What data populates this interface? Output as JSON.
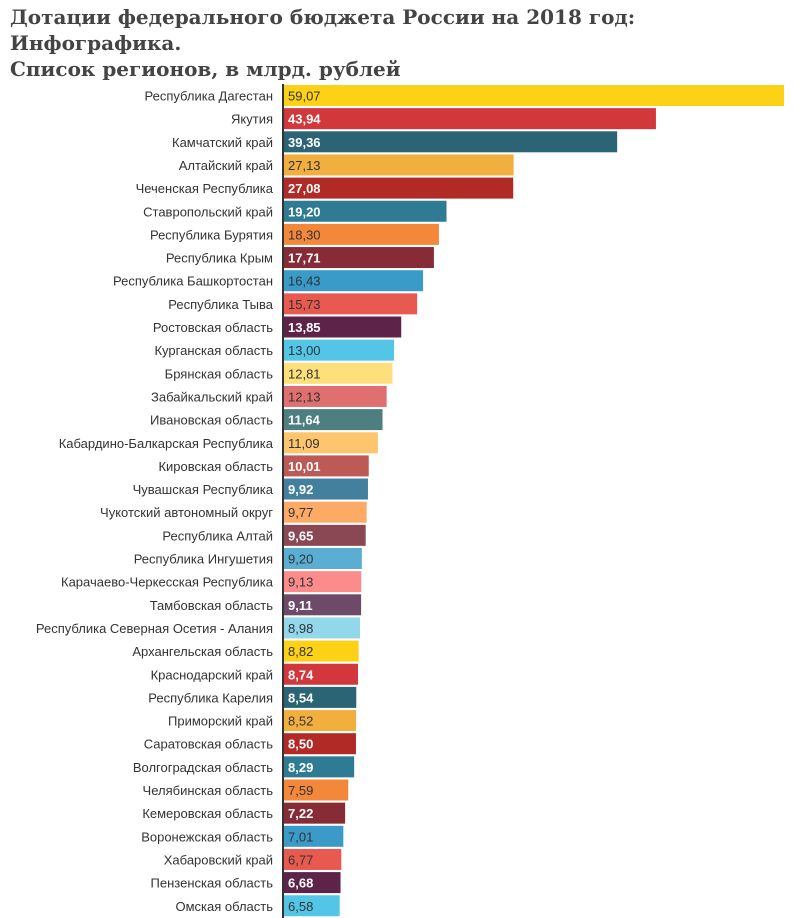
{
  "title_line1": "Дотации федерального бюджета России на 2018 год: Инфографика.",
  "title_line2": "Список регионов, в млрд. рублей",
  "chart_data": {
    "type": "bar",
    "orientation": "horizontal",
    "categories": [
      "Республика Дагестан",
      "Якутия",
      "Камчатский край",
      "Алтайский край",
      "Чеченская Республика",
      "Ставропольский край",
      "Республика Бурятия",
      "Республика Крым",
      "Республика Башкортостан",
      "Республика Тыва",
      "Ростовская область",
      "Курганская область",
      "Брянская область",
      "Забайкальский край",
      "Ивановская область",
      "Кабардино-Балкарская Республика",
      "Кировская область",
      "Чувашская Республика",
      "Чукотский автономный округ",
      "Республика Алтай",
      "Республика Ингушетия",
      "Карачаево-Черкесская Республика",
      "Тамбовская область",
      "Республика Северная Осетия - Алания",
      "Архангельская область",
      "Краснодарский край",
      "Республика Карелия",
      "Приморский край",
      "Саратовская область",
      "Волгоградская область",
      "Челябинская область",
      "Кемеровская область",
      "Воронежская область",
      "Хабаровский край",
      "Пензенская область",
      "Омская область"
    ],
    "values": [
      59.07,
      43.94,
      39.36,
      27.13,
      27.08,
      19.2,
      18.3,
      17.71,
      16.43,
      15.73,
      13.85,
      13.0,
      12.81,
      12.13,
      11.64,
      11.09,
      10.01,
      9.92,
      9.77,
      9.65,
      9.2,
      9.13,
      9.11,
      8.98,
      8.82,
      8.74,
      8.54,
      8.52,
      8.5,
      8.29,
      7.59,
      7.22,
      7.01,
      6.77,
      6.68,
      6.58
    ],
    "value_labels": [
      "59,07",
      "43,94",
      "39,36",
      "27,13",
      "27,08",
      "19,20",
      "18,30",
      "17,71",
      "16,43",
      "15,73",
      "13,85",
      "13,00",
      "12,81",
      "12,13",
      "11,64",
      "11,09",
      "10,01",
      "9,92",
      "9,77",
      "9,65",
      "9,20",
      "9,13",
      "9,11",
      "8,98",
      "8,82",
      "8,74",
      "8,54",
      "8,52",
      "8,50",
      "8,29",
      "7,59",
      "7,22",
      "7,01",
      "6,77",
      "6,68",
      "6,58"
    ],
    "palette": [
      "#fcd116",
      "#d2373b",
      "#2b6575",
      "#f1af3e",
      "#b12a26",
      "#2f7b94",
      "#f3883a",
      "#872b37",
      "#3a9ac8",
      "#e8594f",
      "#5e2349",
      "#53c6e8",
      "#fde07a",
      "#e07070",
      "#4e7f80",
      "#fdc56d",
      "#bd5a55",
      "#43809e",
      "#fdaa66",
      "#8a4855",
      "#5aaed4",
      "#fb8c8b",
      "#6d4b68",
      "#92d7ea"
    ],
    "label_light": [
      false,
      true,
      true,
      false,
      true,
      true,
      false,
      true,
      false,
      false,
      true,
      false,
      false,
      false,
      true,
      false,
      true,
      true,
      false,
      true,
      false,
      false,
      true,
      false
    ],
    "xlim": [
      0,
      59.07
    ],
    "grid": false,
    "legend": "none"
  }
}
